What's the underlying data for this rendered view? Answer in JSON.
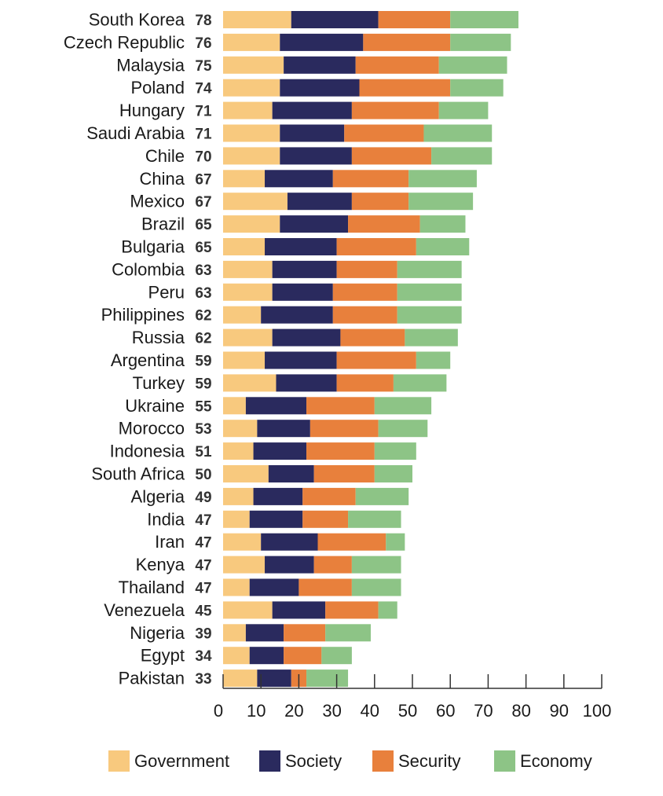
{
  "chart_data": {
    "type": "bar",
    "orientation": "horizontal",
    "stacked": true,
    "title": "",
    "xlabel": "",
    "ylabel": "",
    "xlim": [
      0,
      100
    ],
    "xticks": [
      0,
      10,
      20,
      30,
      40,
      50,
      60,
      70,
      80,
      90,
      100
    ],
    "grid": false,
    "legend_position": "bottom",
    "categories": [
      "South Korea",
      "Czech Republic",
      "Malaysia",
      "Poland",
      "Hungary",
      "Saudi Arabia",
      "Chile",
      "China",
      "Mexico",
      "Brazil",
      "Bulgaria",
      "Colombia",
      "Peru",
      "Philippines",
      "Russia",
      "Argentina",
      "Turkey",
      "Ukraine",
      "Morocco",
      "Indonesia",
      "South Africa",
      "Algeria",
      "India",
      "Iran",
      "Kenya",
      "Thailand",
      "Venezuela",
      "Nigeria",
      "Egypt",
      "Pakistan"
    ],
    "totals": [
      78,
      76,
      75,
      74,
      71,
      71,
      70,
      67,
      67,
      65,
      65,
      63,
      63,
      62,
      62,
      59,
      59,
      55,
      53,
      51,
      50,
      49,
      47,
      47,
      47,
      47,
      45,
      39,
      34,
      33
    ],
    "series": [
      {
        "name": "Government",
        "color": "#F8C97E",
        "values": [
          18,
          15,
          16,
          15,
          13,
          15,
          15,
          11,
          17,
          15,
          11,
          13,
          13,
          10,
          13,
          11,
          14,
          6,
          9,
          8,
          12,
          8,
          7,
          10,
          11,
          7,
          13,
          6,
          7,
          9
        ]
      },
      {
        "name": "Society",
        "color": "#2A2A5E",
        "values": [
          23,
          22,
          19,
          21,
          21,
          17,
          19,
          18,
          17,
          18,
          19,
          17,
          16,
          19,
          18,
          19,
          16,
          16,
          14,
          14,
          12,
          13,
          14,
          15,
          13,
          13,
          14,
          10,
          9,
          9
        ]
      },
      {
        "name": "Security",
        "color": "#E8803C",
        "values": [
          19,
          23,
          22,
          24,
          23,
          21,
          21,
          20,
          15,
          19,
          21,
          16,
          17,
          17,
          17,
          21,
          15,
          18,
          18,
          18,
          16,
          14,
          12,
          18,
          10,
          14,
          14,
          11,
          10,
          4
        ]
      },
      {
        "name": "Economy",
        "color": "#8DC486",
        "values": [
          18,
          16,
          18,
          14,
          13,
          18,
          16,
          18,
          17,
          12,
          14,
          17,
          17,
          17,
          14,
          9,
          14,
          15,
          13,
          11,
          10,
          14,
          14,
          5,
          13,
          13,
          5,
          12,
          8,
          11
        ]
      }
    ]
  }
}
